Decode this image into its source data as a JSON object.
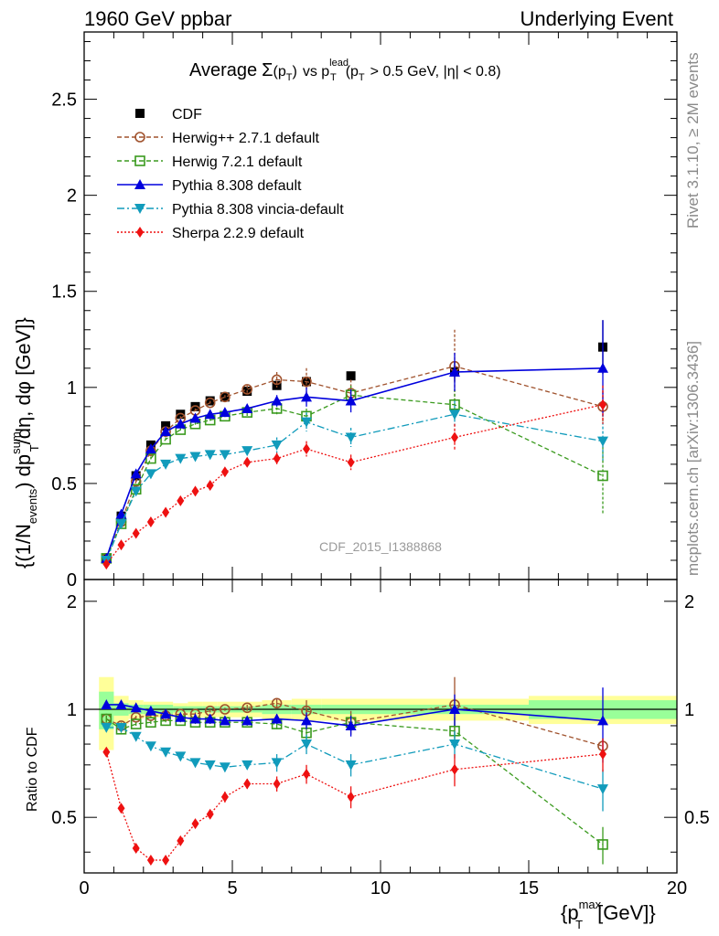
{
  "header": {
    "left": "1960 GeV ppbar",
    "right": "Underlying Event"
  },
  "side_text": {
    "top": "Rivet 3.1.10, ≥ 2M events",
    "bottom": "mcplots.cern.ch [arXiv:1306.3436]"
  },
  "watermark": "CDF_2015_I1388868",
  "title": {
    "prefix": "Average",
    "sigma": "Σ",
    "pt_open": "(p",
    "sub_T": "T",
    "pt_close": ")",
    "vs": "vs p",
    "lead": "lead",
    "cut_open": "(p",
    "cut_rest": "> 0.5 GeV, |η| < 0.8)"
  },
  "ylabel_main": {
    "a": "{(1/N",
    "events": "events",
    "b": ") dp",
    "sum": "sum",
    "T": "T",
    "c": "/dη, dφ [GeV]}"
  },
  "ylabel_ratio": "Ratio to CDF",
  "xlabel": {
    "a": "{p",
    "max": "max",
    "T": "T",
    "b": "[GeV]}"
  },
  "colors": {
    "cdf": "#000000",
    "herwigpp": "#a0522d",
    "herwig7": "#3a9a1e",
    "pythia": "#0000dd",
    "vincia": "#119bbb",
    "sherpa": "#ee1111",
    "band_yellow": "#ffff99",
    "band_green": "#99ff99"
  },
  "chart_data": [
    {
      "type": "scatter",
      "panel": "main",
      "xlim": [
        0,
        20
      ],
      "ylim": [
        0,
        2.85
      ],
      "x_ticks": [
        "0",
        "5",
        "10",
        "15",
        "20"
      ],
      "y_ticks": [
        "0",
        "0.5",
        "1",
        "1.5",
        "2",
        "2.5"
      ],
      "legend_position": "top-left",
      "series": [
        {
          "name": "CDF",
          "key": "cdf",
          "x": [
            0.75,
            1.25,
            1.75,
            2.25,
            2.75,
            3.25,
            3.75,
            4.25,
            4.75,
            5.5,
            6.5,
            7.5,
            9.0,
            12.5,
            17.5
          ],
          "y": [
            0.11,
            0.33,
            0.54,
            0.7,
            0.8,
            0.86,
            0.9,
            0.93,
            0.95,
            0.98,
            1.01,
            1.03,
            1.06,
            1.08,
            1.21
          ],
          "err": [
            0.01,
            0.01,
            0.01,
            0.01,
            0.01,
            0.01,
            0.01,
            0.01,
            0.01,
            0.01,
            0.02,
            0.02,
            0.02,
            0.05,
            0.14
          ]
        },
        {
          "name": "Herwig++ 2.7.1 default",
          "key": "herwigpp",
          "x": [
            0.75,
            1.25,
            1.75,
            2.25,
            2.75,
            3.25,
            3.75,
            4.25,
            4.75,
            5.5,
            6.5,
            7.5,
            9.0,
            12.5,
            17.5
          ],
          "y": [
            0.11,
            0.3,
            0.51,
            0.67,
            0.77,
            0.84,
            0.88,
            0.92,
            0.95,
            0.99,
            1.04,
            1.03,
            0.97,
            1.11,
            0.9
          ],
          "err": [
            0.005,
            0.01,
            0.01,
            0.01,
            0.01,
            0.01,
            0.01,
            0.01,
            0.01,
            0.02,
            0.04,
            0.07,
            0.07,
            0.19,
            0.08
          ]
        },
        {
          "name": "Herwig 7.2.1 default",
          "key": "herwig7",
          "x": [
            0.75,
            1.25,
            1.75,
            2.25,
            2.75,
            3.25,
            3.75,
            4.25,
            4.75,
            5.5,
            6.5,
            7.5,
            9.0,
            12.5,
            17.5
          ],
          "y": [
            0.11,
            0.29,
            0.47,
            0.63,
            0.73,
            0.78,
            0.81,
            0.83,
            0.85,
            0.87,
            0.89,
            0.85,
            0.96,
            0.91,
            0.54
          ],
          "err": [
            0.005,
            0.01,
            0.01,
            0.01,
            0.01,
            0.01,
            0.01,
            0.01,
            0.01,
            0.02,
            0.03,
            0.04,
            0.05,
            0.08,
            0.2
          ]
        },
        {
          "name": "Pythia 8.308 default",
          "key": "pythia",
          "x": [
            0.75,
            1.25,
            1.75,
            2.25,
            2.75,
            3.25,
            3.75,
            4.25,
            4.75,
            5.5,
            6.5,
            7.5,
            9.0,
            12.5,
            17.5
          ],
          "y": [
            0.11,
            0.34,
            0.55,
            0.68,
            0.77,
            0.81,
            0.84,
            0.86,
            0.87,
            0.89,
            0.93,
            0.95,
            0.93,
            1.08,
            1.1
          ],
          "err": [
            0.005,
            0.01,
            0.01,
            0.01,
            0.01,
            0.01,
            0.01,
            0.01,
            0.01,
            0.02,
            0.03,
            0.05,
            0.06,
            0.1,
            0.25
          ]
        },
        {
          "name": "Pythia 8.308 vincia-default",
          "key": "vincia",
          "x": [
            0.75,
            1.25,
            1.75,
            2.25,
            2.75,
            3.25,
            3.75,
            4.25,
            4.75,
            5.5,
            6.5,
            7.5,
            9.0,
            12.5,
            17.5
          ],
          "y": [
            0.1,
            0.29,
            0.46,
            0.55,
            0.6,
            0.63,
            0.64,
            0.65,
            0.65,
            0.67,
            0.7,
            0.82,
            0.74,
            0.86,
            0.72
          ],
          "err": [
            0.005,
            0.01,
            0.01,
            0.01,
            0.01,
            0.01,
            0.01,
            0.01,
            0.02,
            0.02,
            0.04,
            0.05,
            0.05,
            0.07,
            0.1
          ]
        },
        {
          "name": "Sherpa 2.2.9 default",
          "key": "sherpa",
          "x": [
            0.75,
            1.25,
            1.75,
            2.25,
            2.75,
            3.25,
            3.75,
            4.25,
            4.75,
            5.5,
            6.5,
            7.5,
            9.0,
            12.5,
            17.5
          ],
          "y": [
            0.08,
            0.18,
            0.24,
            0.3,
            0.35,
            0.41,
            0.46,
            0.49,
            0.56,
            0.61,
            0.63,
            0.68,
            0.61,
            0.74,
            0.91
          ],
          "err": [
            0.005,
            0.01,
            0.01,
            0.01,
            0.01,
            0.01,
            0.01,
            0.01,
            0.02,
            0.02,
            0.03,
            0.04,
            0.04,
            0.07,
            0.1
          ]
        }
      ]
    },
    {
      "type": "scatter",
      "panel": "ratio",
      "xlim": [
        0,
        20
      ],
      "ylim": [
        0.35,
        2.3
      ],
      "y_ticks": [
        "0.5",
        "1",
        "2"
      ],
      "band": {
        "edges": [
          0.5,
          1,
          1.5,
          2,
          2.5,
          3,
          3.5,
          4,
          4.5,
          5,
          6,
          7,
          8,
          10,
          15,
          20
        ],
        "yellow": [
          0.23,
          0.09,
          0.06,
          0.05,
          0.05,
          0.04,
          0.05,
          0.05,
          0.05,
          0.05,
          0.06,
          0.07,
          0.07,
          0.07,
          0.09
        ],
        "green": [
          0.12,
          0.04,
          0.03,
          0.03,
          0.03,
          0.02,
          0.02,
          0.02,
          0.02,
          0.02,
          0.03,
          0.03,
          0.03,
          0.03,
          0.06
        ]
      },
      "series": [
        {
          "key": "herwigpp",
          "y": [
            0.94,
            0.9,
            0.95,
            0.96,
            0.96,
            0.97,
            0.97,
            0.99,
            1.0,
            1.01,
            1.04,
            0.99,
            0.92,
            1.03,
            0.79
          ],
          "err": [
            0.02,
            0.02,
            0.01,
            0.01,
            0.01,
            0.01,
            0.01,
            0.01,
            0.01,
            0.02,
            0.03,
            0.07,
            0.07,
            0.2,
            0.04
          ]
        },
        {
          "key": "herwig7",
          "y": [
            0.94,
            0.88,
            0.91,
            0.92,
            0.93,
            0.93,
            0.92,
            0.92,
            0.92,
            0.92,
            0.91,
            0.86,
            0.92,
            0.87,
            0.42
          ],
          "err": [
            0.02,
            0.02,
            0.01,
            0.01,
            0.01,
            0.01,
            0.01,
            0.01,
            0.01,
            0.02,
            0.03,
            0.04,
            0.05,
            0.08,
            0.05
          ]
        },
        {
          "key": "pythia",
          "y": [
            1.03,
            1.03,
            1.01,
            0.99,
            0.97,
            0.95,
            0.94,
            0.94,
            0.93,
            0.93,
            0.94,
            0.93,
            0.9,
            1.0,
            0.93
          ],
          "err": [
            0.02,
            0.02,
            0.01,
            0.01,
            0.01,
            0.01,
            0.01,
            0.01,
            0.01,
            0.02,
            0.03,
            0.05,
            0.06,
            0.1,
            0.22
          ]
        },
        {
          "key": "vincia",
          "y": [
            0.89,
            0.89,
            0.84,
            0.79,
            0.76,
            0.74,
            0.71,
            0.7,
            0.69,
            0.7,
            0.71,
            0.8,
            0.7,
            0.8,
            0.6
          ],
          "err": [
            0.02,
            0.02,
            0.01,
            0.01,
            0.01,
            0.01,
            0.01,
            0.01,
            0.02,
            0.02,
            0.04,
            0.05,
            0.05,
            0.07,
            0.08
          ]
        },
        {
          "key": "sherpa",
          "y": [
            0.76,
            0.53,
            0.41,
            0.38,
            0.38,
            0.43,
            0.48,
            0.51,
            0.57,
            0.62,
            0.62,
            0.66,
            0.57,
            0.68,
            0.75
          ],
          "err": [
            0.02,
            0.01,
            0.01,
            0.01,
            0.01,
            0.01,
            0.01,
            0.01,
            0.02,
            0.02,
            0.03,
            0.04,
            0.04,
            0.07,
            0.08
          ]
        }
      ]
    }
  ]
}
